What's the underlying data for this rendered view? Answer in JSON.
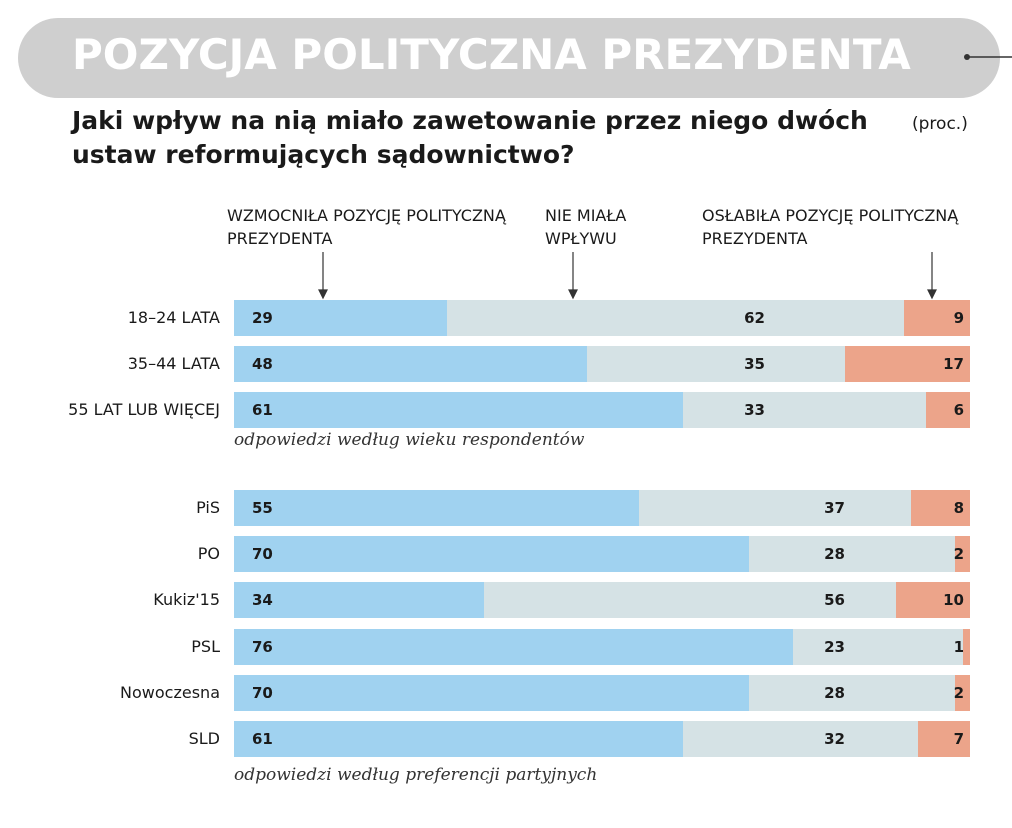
{
  "chart_data": [
    {
      "type": "stacked_bar",
      "title": "POZYCJA POLITYCZNA PREZYDENTA",
      "subtitle": "Jaki wpływ na nią miało zawetowanie przez niego dwóch ustaw reformujących sądownictwo?",
      "unit": "(proc.)",
      "categories": [
        "18–24 LATA",
        "35–44 LATA",
        "55 LAT LUB WIĘCEJ"
      ],
      "series": [
        {
          "name": "WZMOCNIŁA POZYCJĘ POLITYCZNĄ PREZYDENTA",
          "color": "#a0d2f0",
          "values": [
            29,
            48,
            61
          ]
        },
        {
          "name": "NIE MIAŁA WPŁYWU",
          "color": "#d5e2e5",
          "values": [
            62,
            35,
            33
          ]
        },
        {
          "name": "OSŁABIŁA POZYCJĘ POLITYCZNĄ PREZYDENTA",
          "color": "#eca48a",
          "values": [
            9,
            17,
            6
          ]
        }
      ],
      "caption": "odpowiedzi według wieku respondentów"
    },
    {
      "type": "stacked_bar",
      "categories": [
        "PiS",
        "PO",
        "Kukiz'15",
        "PSL",
        "Nowoczesna",
        "SLD"
      ],
      "series": [
        {
          "color": "#a0d2f0",
          "values": [
            55,
            70,
            34,
            76,
            70,
            61
          ]
        },
        {
          "color": "#d5e2e5",
          "values": [
            37,
            28,
            56,
            23,
            28,
            32
          ]
        },
        {
          "color": "#eca48a",
          "values": [
            8,
            2,
            10,
            1,
            2,
            7
          ]
        }
      ],
      "caption": "odpowiedzi według preferencji partyjnych"
    }
  ]
}
